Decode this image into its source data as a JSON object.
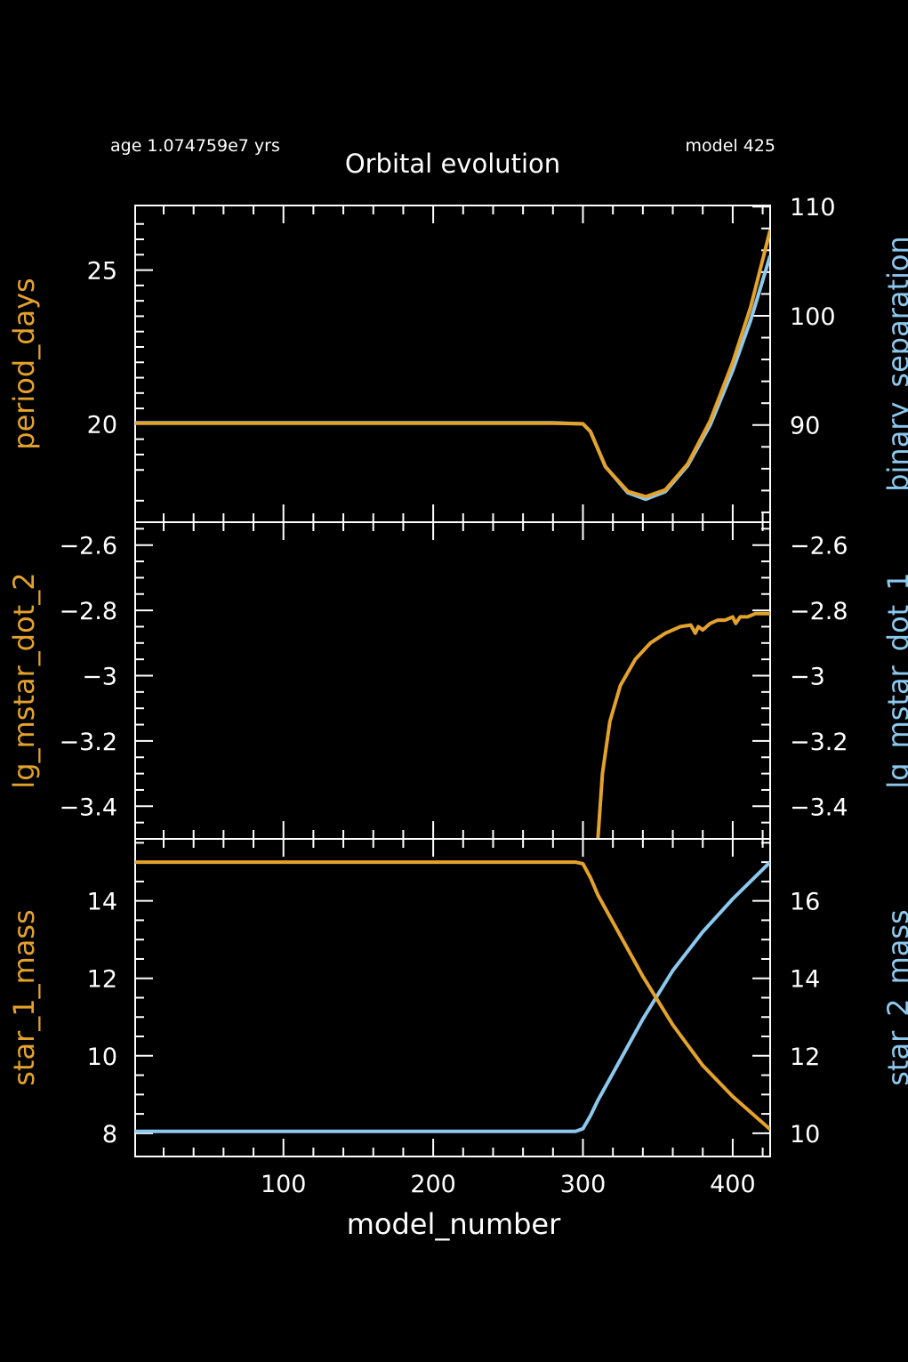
{
  "header": {
    "age_text": "age 1.074759e7 yrs",
    "model_text": "model 425",
    "title": "Orbital evolution"
  },
  "colors": {
    "background": "#000000",
    "frame": "#ffffff",
    "left_series": "#e3a22b",
    "right_series": "#8cc8ee"
  },
  "chart_data": [
    {
      "type": "line",
      "xlabel": "model_number",
      "xlim": [
        1,
        425
      ],
      "left_axis": {
        "label": "period_days",
        "ylim": [
          16.8,
          27.1
        ],
        "ticks": [
          "20",
          "25"
        ]
      },
      "right_axis": {
        "label": "binary_separation",
        "ylim": [
          81.1,
          110.1
        ],
        "ticks": [
          "90",
          "100",
          "110"
        ]
      },
      "series": [
        {
          "name": "period_days",
          "axis": "left",
          "x": [
            1,
            100,
            200,
            280,
            300,
            305,
            315,
            330,
            342,
            355,
            370,
            385,
            400,
            412,
            425
          ],
          "y": [
            20.02,
            20.02,
            20.02,
            20.02,
            20.0,
            19.75,
            18.6,
            17.8,
            17.63,
            17.85,
            18.7,
            20.1,
            22.0,
            23.8,
            26.3
          ]
        },
        {
          "name": "binary_separation",
          "axis": "right",
          "x": [
            1,
            100,
            200,
            280,
            300,
            305,
            315,
            330,
            342,
            355,
            370,
            385,
            400,
            412,
            425
          ],
          "y": [
            90.2,
            90.2,
            90.2,
            90.2,
            90.1,
            89.4,
            86.2,
            83.8,
            83.2,
            83.9,
            86.3,
            90.0,
            95.0,
            99.6,
            105.5
          ]
        }
      ]
    },
    {
      "type": "line",
      "xlabel": "model_number",
      "xlim": [
        1,
        425
      ],
      "left_axis": {
        "label": "lg_mstar_dot_2",
        "ylim": [
          -3.5,
          -2.53
        ],
        "ticks": [
          "-3.4",
          "-3.2",
          "-3",
          "-2.8",
          "-2.6"
        ]
      },
      "right_axis": {
        "label": "lg_mstar_dot_1",
        "ylim": [
          -3.5,
          -2.53
        ],
        "ticks": [
          "-3.4",
          "-3.2",
          "-3",
          "-2.8",
          "-2.6"
        ]
      },
      "series": [
        {
          "name": "lg_mstar_dot_2",
          "axis": "left",
          "x": [
            310,
            313,
            318,
            325,
            335,
            345,
            355,
            365,
            372,
            375,
            377,
            380,
            385,
            390,
            395,
            400,
            402,
            405,
            410,
            415,
            420,
            425
          ],
          "y": [
            -3.5,
            -3.3,
            -3.14,
            -3.03,
            -2.95,
            -2.9,
            -2.87,
            -2.85,
            -2.845,
            -2.87,
            -2.85,
            -2.86,
            -2.84,
            -2.83,
            -2.83,
            -2.82,
            -2.84,
            -2.82,
            -2.82,
            -2.81,
            -2.81,
            -2.81
          ]
        }
      ]
    },
    {
      "type": "line",
      "xlabel": "model_number",
      "xlim": [
        1,
        425
      ],
      "left_axis": {
        "label": "star_1_mass",
        "ylim": [
          7.4,
          15.6
        ],
        "ticks": [
          "8",
          "10",
          "12",
          "14"
        ]
      },
      "right_axis": {
        "label": "star_2_mass",
        "ylim": [
          9.4,
          17.6
        ],
        "ticks": [
          "10",
          "12",
          "14",
          "16"
        ]
      },
      "series": [
        {
          "name": "star_1_mass",
          "axis": "left",
          "x": [
            1,
            100,
            200,
            295,
            300,
            305,
            310,
            320,
            340,
            360,
            380,
            400,
            425
          ],
          "y": [
            15.0,
            15.0,
            15.0,
            15.0,
            14.96,
            14.6,
            14.15,
            13.45,
            12.05,
            10.8,
            9.75,
            8.95,
            8.1
          ]
        },
        {
          "name": "star_2_mass",
          "axis": "right",
          "x": [
            1,
            100,
            200,
            295,
            300,
            305,
            310,
            320,
            340,
            360,
            380,
            400,
            425
          ],
          "y": [
            10.05,
            10.05,
            10.05,
            10.05,
            10.12,
            10.45,
            10.85,
            11.55,
            12.95,
            14.2,
            15.2,
            16.05,
            17.0
          ]
        }
      ]
    }
  ],
  "xaxis": {
    "label": "model_number",
    "tick_labels": [
      "100",
      "200",
      "300",
      "400"
    ]
  }
}
